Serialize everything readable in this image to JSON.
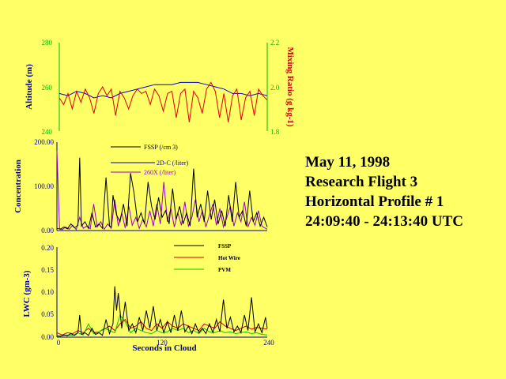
{
  "info": {
    "date": "May 11, 1998",
    "flight": "Research Flight 3",
    "profile": "Horizontal Profile # 1",
    "time": "24:09:40 - 24:13:40 UTC"
  },
  "colors": {
    "background": "#ffff66",
    "altitude": "#0000dd",
    "mixing": "#dd0000",
    "fssp": "#000000",
    "d2dc": "#0000aa",
    "c260x": "#9900cc",
    "hotwire": "#dd0000",
    "pvm": "#00cc00",
    "green_axis": "#00bb00",
    "axis_blue": "#000099"
  },
  "chart_data": [
    {
      "type": "line",
      "panel": "altitude-mixing",
      "ylabel": "Altitude (m)",
      "y2label": "Mixing Ratio (g kg-1)",
      "ylim": [
        240,
        280
      ],
      "y2lim": [
        1.8,
        2.2
      ],
      "yticks": [
        "280",
        "260",
        "240"
      ],
      "y2ticks": [
        "2.2",
        "2.0",
        "1.8"
      ],
      "xlim": [
        0,
        240
      ],
      "series": [
        {
          "key": "altitude",
          "x": [
            0,
            10,
            20,
            30,
            40,
            50,
            60,
            70,
            80,
            90,
            100,
            110,
            120,
            130,
            140,
            150,
            160,
            170,
            180,
            190,
            200,
            210,
            220,
            230,
            240
          ],
          "values": [
            257,
            256,
            258,
            257,
            255,
            256,
            255,
            257,
            258,
            259,
            260,
            261,
            261,
            261,
            262,
            262,
            262,
            261,
            260,
            259,
            257,
            257,
            256,
            257,
            256
          ]
        },
        {
          "key": "mixing",
          "x": [
            0,
            5,
            10,
            15,
            20,
            25,
            30,
            35,
            40,
            45,
            50,
            55,
            60,
            65,
            70,
            75,
            80,
            85,
            90,
            95,
            100,
            105,
            110,
            115,
            120,
            125,
            130,
            135,
            140,
            145,
            150,
            155,
            160,
            165,
            170,
            175,
            180,
            185,
            190,
            195,
            200,
            205,
            210,
            215,
            220,
            225,
            230,
            235,
            240
          ],
          "values": [
            1.95,
            1.92,
            1.97,
            1.9,
            1.98,
            1.93,
            1.99,
            1.95,
            1.88,
            1.97,
            2.0,
            1.96,
            1.99,
            1.87,
            1.98,
            1.95,
            1.9,
            1.96,
            1.99,
            1.97,
            1.98,
            1.92,
            1.99,
            1.96,
            1.89,
            1.97,
            1.98,
            1.86,
            1.97,
            1.99,
            1.84,
            1.98,
            1.95,
            1.88,
            1.99,
            2.02,
            1.98,
            1.86,
            1.97,
            1.84,
            1.96,
            1.99,
            1.85,
            1.95,
            1.98,
            1.87,
            1.99,
            1.96,
            1.94
          ]
        }
      ]
    },
    {
      "type": "line",
      "panel": "concentration",
      "ylabel": "Concentration",
      "ylim": [
        0,
        200
      ],
      "yticks": [
        "200.00",
        "100.00",
        "0.00"
      ],
      "xlim": [
        0,
        240
      ],
      "legend": [
        "FSSP (/cm 3)",
        "2D-C (/liter)",
        "260X (/liter)"
      ],
      "series": [
        {
          "key": "c260x",
          "x": [
            0,
            3,
            6,
            10,
            14,
            18,
            22,
            26,
            30,
            34,
            38,
            42,
            46,
            50,
            54,
            58,
            62,
            66,
            70,
            74,
            78,
            82,
            86,
            90,
            94,
            98,
            102,
            106,
            110,
            114,
            118,
            122,
            126,
            130,
            134,
            138,
            142,
            146,
            150,
            154,
            158,
            162,
            166,
            170,
            174,
            178,
            182,
            186,
            190,
            194,
            198,
            202,
            206,
            210,
            214,
            218,
            222,
            226,
            230,
            234,
            238,
            240
          ],
          "values": [
            180,
            5,
            2,
            8,
            3,
            12,
            2,
            30,
            5,
            10,
            4,
            60,
            8,
            20,
            3,
            15,
            5,
            70,
            10,
            40,
            6,
            55,
            12,
            30,
            5,
            25,
            8,
            45,
            10,
            60,
            15,
            110,
            20,
            50,
            8,
            40,
            12,
            65,
            10,
            30,
            70,
            20,
            45,
            8,
            35,
            60,
            12,
            50,
            8,
            30,
            55,
            10,
            40,
            20,
            65,
            8,
            30,
            12,
            45,
            10,
            5,
            3
          ]
        },
        {
          "key": "fssp",
          "x": [
            0,
            4,
            8,
            12,
            16,
            20,
            24,
            26,
            28,
            32,
            36,
            40,
            44,
            48,
            52,
            56,
            60,
            62,
            64,
            68,
            72,
            76,
            80,
            84,
            88,
            92,
            96,
            100,
            104,
            108,
            112,
            116,
            120,
            124,
            128,
            132,
            136,
            140,
            144,
            148,
            152,
            156,
            160,
            164,
            168,
            172,
            176,
            180,
            184,
            188,
            192,
            196,
            200,
            204,
            208,
            212,
            216,
            220,
            224,
            228,
            232,
            236,
            240
          ],
          "values": [
            5,
            3,
            8,
            4,
            15,
            6,
            12,
            165,
            10,
            20,
            5,
            40,
            8,
            15,
            5,
            120,
            10,
            8,
            80,
            35,
            20,
            60,
            10,
            130,
            85,
            20,
            40,
            15,
            110,
            55,
            25,
            75,
            30,
            45,
            15,
            95,
            25,
            55,
            15,
            40,
            10,
            140,
            30,
            60,
            20,
            90,
            25,
            70,
            15,
            45,
            10,
            80,
            20,
            110,
            30,
            45,
            10,
            90,
            20,
            40,
            10,
            30,
            8
          ]
        }
      ]
    },
    {
      "type": "line",
      "panel": "lwc",
      "ylabel": "LWC (gm-3)",
      "xlabel": "Seconds in Cloud",
      "ylim": [
        0,
        0.2
      ],
      "yticks": [
        "0.20",
        "0.15",
        "0.10",
        "0.05",
        "0.00"
      ],
      "xticks": [
        "0",
        "120",
        "240"
      ],
      "xlim": [
        0,
        240
      ],
      "legend": [
        "FSSP",
        "Hot Wire",
        "PVM"
      ],
      "series": [
        {
          "key": "hotwire",
          "x": [
            0,
            6,
            12,
            18,
            24,
            30,
            36,
            42,
            48,
            54,
            60,
            66,
            72,
            78,
            84,
            90,
            96,
            102,
            108,
            114,
            120,
            126,
            132,
            138,
            144,
            150,
            156,
            162,
            168,
            174,
            180,
            186,
            192,
            198,
            204,
            210,
            216,
            222,
            228,
            234,
            240
          ],
          "values": [
            0.01,
            0.005,
            0.01,
            0.008,
            0.015,
            0.01,
            0.02,
            0.01,
            0.012,
            0.018,
            0.025,
            0.015,
            0.03,
            0.04,
            0.02,
            0.025,
            0.035,
            0.02,
            0.015,
            0.03,
            0.02,
            0.035,
            0.025,
            0.02,
            0.03,
            0.025,
            0.02,
            0.015,
            0.03,
            0.025,
            0.02,
            0.035,
            0.025,
            0.02,
            0.015,
            0.02,
            0.025,
            0.018,
            0.022,
            0.02,
            0.018
          ]
        },
        {
          "key": "pvm",
          "x": [
            0,
            6,
            12,
            18,
            24,
            30,
            36,
            42,
            48,
            54,
            60,
            66,
            72,
            78,
            84,
            90,
            96,
            102,
            108,
            114,
            120,
            126,
            132,
            138,
            144,
            150,
            156,
            162,
            168,
            174,
            180,
            186,
            192,
            198,
            204,
            210,
            216,
            222,
            228,
            234,
            240
          ],
          "values": [
            0.002,
            0.003,
            0.005,
            0.004,
            0.01,
            0.005,
            0.03,
            0.008,
            0.012,
            0.02,
            0.015,
            0.01,
            0.05,
            0.035,
            0.01,
            0.02,
            0.015,
            0.01,
            0.008,
            0.015,
            0.01,
            0.012,
            0.02,
            0.015,
            0.02,
            0.01,
            0.015,
            0.008,
            0.02,
            0.012,
            0.01,
            0.015,
            0.01,
            0.012,
            0.008,
            0.01,
            0.012,
            0.008,
            0.01,
            0.006,
            0.005
          ]
        },
        {
          "key": "fssp",
          "x": [
            0,
            4,
            8,
            12,
            16,
            20,
            24,
            26,
            28,
            32,
            36,
            40,
            44,
            48,
            52,
            56,
            60,
            64,
            66,
            68,
            70,
            74,
            78,
            82,
            86,
            90,
            94,
            98,
            102,
            106,
            110,
            114,
            118,
            122,
            126,
            130,
            134,
            138,
            142,
            146,
            150,
            154,
            158,
            162,
            166,
            170,
            174,
            178,
            182,
            186,
            190,
            194,
            198,
            202,
            206,
            210,
            214,
            218,
            222,
            226,
            230,
            234,
            238,
            240
          ],
          "values": [
            0.003,
            0.002,
            0.005,
            0.003,
            0.008,
            0.004,
            0.01,
            0.05,
            0.006,
            0.01,
            0.004,
            0.02,
            0.006,
            0.01,
            0.004,
            0.04,
            0.008,
            0.03,
            0.115,
            0.06,
            0.1,
            0.02,
            0.08,
            0.015,
            0.03,
            0.01,
            0.045,
            0.015,
            0.06,
            0.02,
            0.07,
            0.015,
            0.04,
            0.01,
            0.035,
            0.01,
            0.05,
            0.015,
            0.06,
            0.012,
            0.025,
            0.008,
            0.03,
            0.01,
            0.02,
            0.008,
            0.03,
            0.01,
            0.04,
            0.012,
            0.085,
            0.02,
            0.045,
            0.012,
            0.025,
            0.01,
            0.05,
            0.015,
            0.09,
            0.012,
            0.03,
            0.01,
            0.045,
            0.02
          ]
        }
      ]
    }
  ]
}
